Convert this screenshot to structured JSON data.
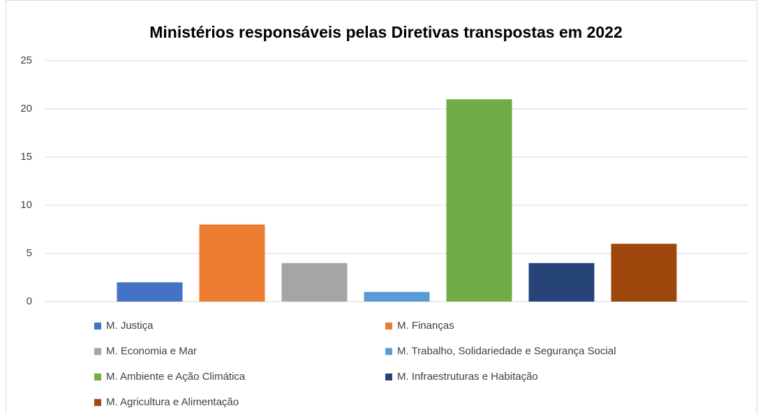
{
  "chart_data": {
    "type": "bar",
    "title": "Ministérios responsáveis pelas Diretivas transpostas em 2022",
    "series": [
      {
        "name": "M. Justiça",
        "color": "#4472c4",
        "values": [
          2
        ]
      },
      {
        "name": "M. Finanças",
        "color": "#ed7d31",
        "values": [
          8
        ]
      },
      {
        "name": "M. Economia e Mar",
        "color": "#a5a5a5",
        "values": [
          4
        ]
      },
      {
        "name": "M. Trabalho, Solidariedade e Segurança Social",
        "color": "#5b9bd5",
        "values": [
          1
        ]
      },
      {
        "name": "M. Ambiente e Ação Climática",
        "color": "#70ad47",
        "values": [
          21
        ]
      },
      {
        "name": "M. Infraestruturas e Habitação",
        "color": "#264478",
        "values": [
          4
        ]
      },
      {
        "name": "M. Agricultura e Alimentação",
        "color": "#9e480e",
        "values": [
          6
        ]
      }
    ],
    "ylim": [
      0,
      25
    ],
    "yticks": [
      0,
      5,
      10,
      15,
      20,
      25
    ],
    "grid": true,
    "legend": "bottom"
  }
}
